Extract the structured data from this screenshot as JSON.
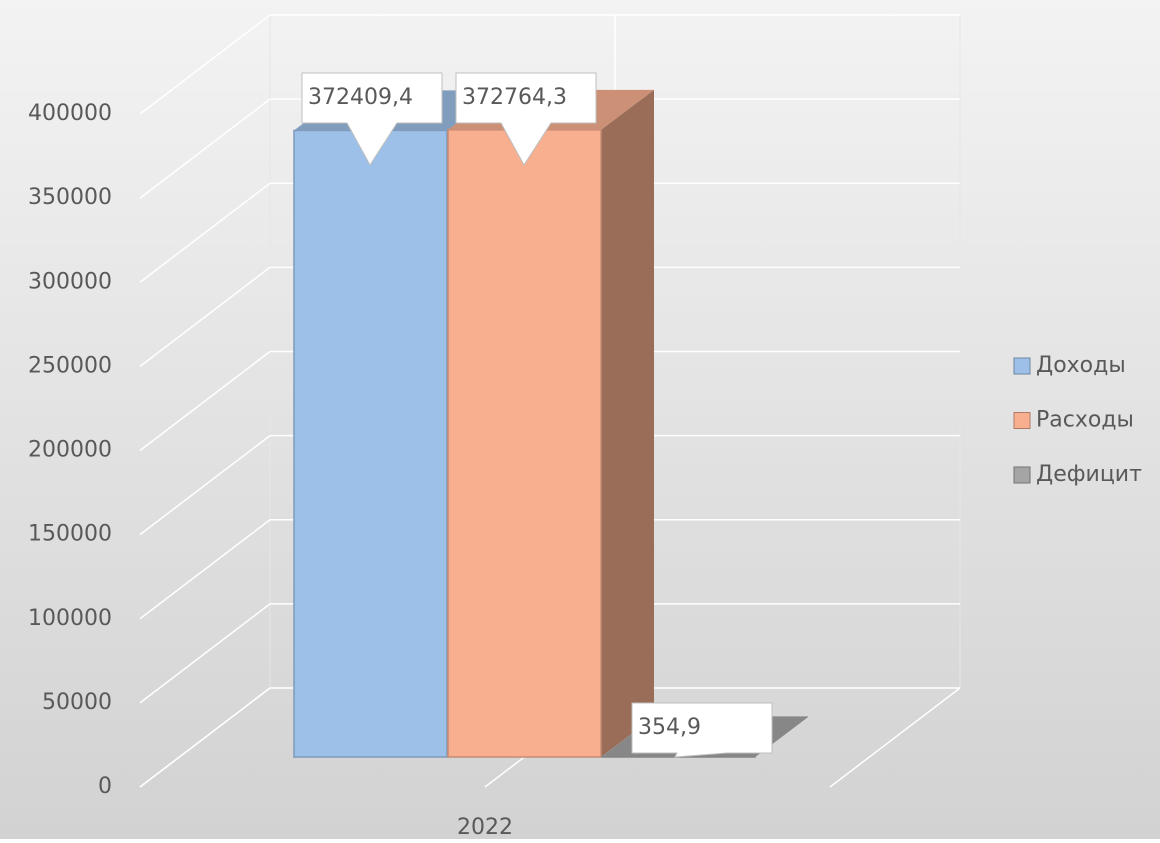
{
  "chart_data": {
    "type": "bar",
    "categories": [
      "2022"
    ],
    "series": [
      {
        "name": "Доходы",
        "color": "#9dc0e8",
        "values": [
          372409.4
        ],
        "value_labels": [
          "372409,4"
        ]
      },
      {
        "name": "Расходы",
        "color": "#f8af90",
        "values": [
          372764.3
        ],
        "value_labels": [
          "372764,3"
        ]
      },
      {
        "name": "Дефицит",
        "color": "#a5a5a5",
        "values": [
          354.9
        ],
        "value_labels": [
          "354,9"
        ]
      }
    ],
    "ylim": [
      0,
      400000
    ],
    "yticks": [
      0,
      50000,
      100000,
      150000,
      200000,
      250000,
      300000,
      350000,
      400000
    ],
    "grid": true,
    "legend": "right"
  }
}
